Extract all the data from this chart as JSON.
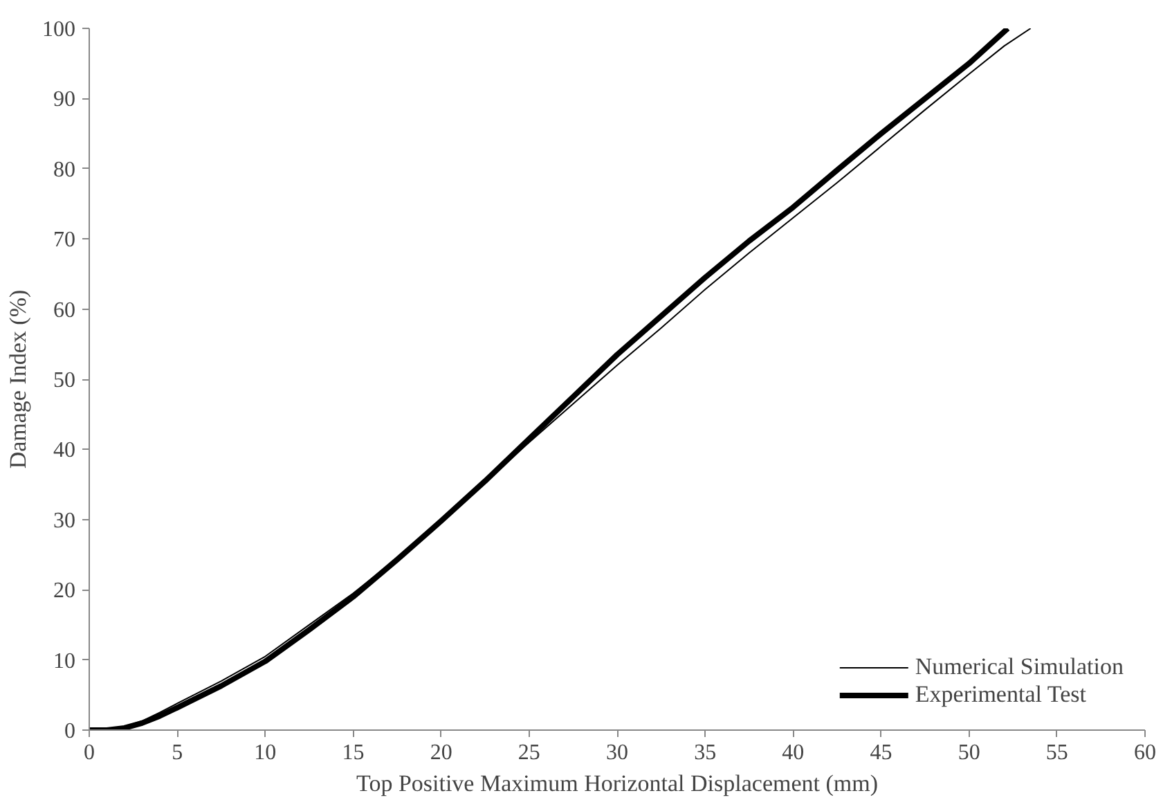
{
  "chart_data": {
    "type": "line",
    "xlabel": "Top Positive Maximum Horizontal Displacement (mm)",
    "ylabel": "Damage Index (%)",
    "xlim": [
      0,
      60
    ],
    "ylim": [
      0,
      100
    ],
    "xticks": [
      0,
      5,
      10,
      15,
      20,
      25,
      30,
      35,
      40,
      45,
      50,
      55,
      60
    ],
    "yticks": [
      0,
      10,
      20,
      30,
      40,
      50,
      60,
      70,
      80,
      90,
      100
    ],
    "grid": false,
    "legend": "bottom right",
    "marker": "none",
    "line_style": "solid",
    "series": [
      {
        "name": "Numerical Simulation",
        "color": "#000000",
        "x": [
          0,
          1,
          2,
          3,
          4,
          5,
          7.5,
          10,
          12.5,
          15,
          17.5,
          20,
          22.5,
          25,
          27.5,
          30,
          32.5,
          35,
          37.5,
          40,
          42.5,
          45,
          47.5,
          50,
          52,
          53.5
        ],
        "values": [
          0,
          0.1,
          0.5,
          1.3,
          2.5,
          3.8,
          7,
          10.5,
          15,
          19.5,
          24.5,
          29.8,
          35.3,
          41,
          46.5,
          52,
          57.3,
          62.8,
          68,
          73,
          78,
          83.2,
          88.4,
          93.5,
          97.5,
          100
        ]
      },
      {
        "name": "Experimental Test",
        "color": "#000000",
        "x": [
          0,
          1,
          2,
          3,
          4,
          5,
          7.5,
          10,
          12.5,
          15,
          17.5,
          20,
          22.5,
          25,
          27.5,
          30,
          32.5,
          35,
          37.5,
          40,
          42.5,
          45,
          47.5,
          50,
          52.2
        ],
        "values": [
          0,
          0,
          0.3,
          1,
          2,
          3.2,
          6.3,
          9.8,
          14.3,
          19,
          24.3,
          29.8,
          35.5,
          41.5,
          47.5,
          53.5,
          59,
          64.5,
          69.7,
          74.5,
          79.8,
          85,
          90,
          95,
          100
        ]
      }
    ]
  }
}
